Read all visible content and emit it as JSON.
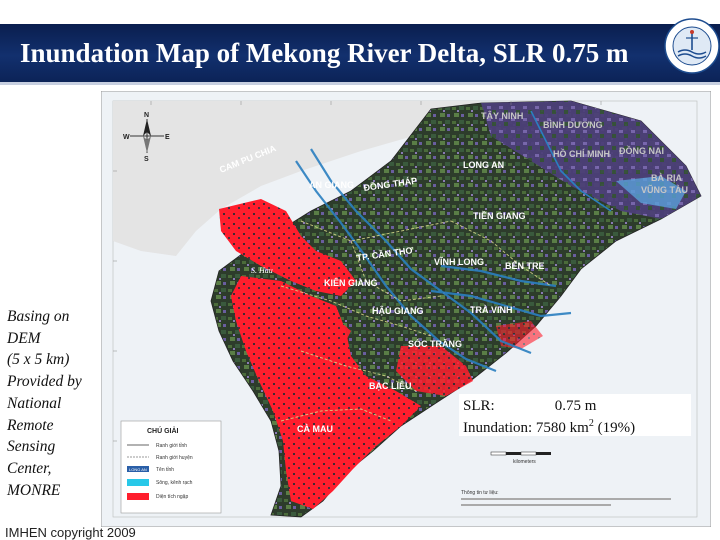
{
  "title": "Inundation Map of Mekong River Delta, SLR 0.75 m",
  "source_note": [
    "Basing on",
    "DEM",
    "(5 x 5 km)",
    "Provided by",
    "National",
    "Remote",
    "Sensing",
    "Center,",
    "MONRE"
  ],
  "copyright": "IMHEN copyright 2009",
  "map": {
    "compass": {
      "n": "N",
      "s": "S",
      "e": "E",
      "w": "W"
    },
    "country_label": "CAM PU CHIA",
    "river_label": "S. Hau",
    "provinces": {
      "an_giang": "AN GIANG",
      "dong_thap": "ĐỒNG THÁP",
      "long_an": "LONG AN",
      "tien_giang": "TIỀN GIANG",
      "can_tho": "TP. CẦN THƠ",
      "vinh_long": "VĨNH LONG",
      "ben_tre": "BẾN TRE",
      "kien_giang": "KIÊN GIANG",
      "hau_giang": "HẬU GIANG",
      "tra_vinh": "TRÀ VINH",
      "soc_trang": "SÓC TRĂNG",
      "bac_lieu": "BẠC LIÊU",
      "ca_mau": "CÀ MAU",
      "tay_ninh": "TÂY NINH",
      "binh_duong": "BÌNH DƯƠNG",
      "ho_chi_minh": "HỒ CHÍ MINH",
      "dong_nai": "ĐỒNG NAI",
      "ba_ria": "BÀ RỊA",
      "vung_tau": "VŨNG TÀU"
    },
    "legend": {
      "title": "CHÚ GIẢI",
      "items": [
        "Ranh giới tỉnh",
        "Ranh giới huyện",
        "Tên tỉnh",
        "Sông, kênh rạch",
        "Diện tích ngập"
      ],
      "province_sample": "LONG AN"
    },
    "scale_label": "kilometers",
    "info_title": "Thông tin tư liệu:",
    "colors": {
      "inundation": "#ff1e2d",
      "water": "#2a7fc0",
      "sea": "#eef2f6"
    }
  },
  "result": {
    "slr_label": "SLR:",
    "slr_value": "0.75 m",
    "inundation_label": "Inundation:",
    "inundation_value": "7580 km",
    "inundation_unit_sup": "2",
    "inundation_pct": "(19%)"
  }
}
